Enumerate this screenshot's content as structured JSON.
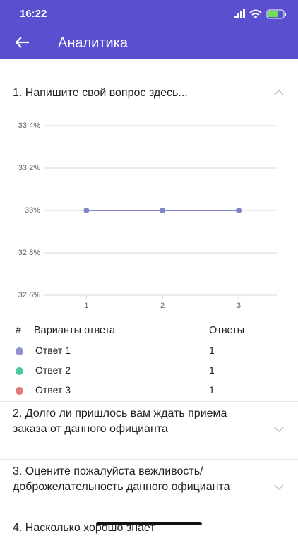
{
  "status": {
    "time": "16:22"
  },
  "header": {
    "title": "Аналитика"
  },
  "questions": [
    {
      "title": "1. Напишите свой вопрос здесь...",
      "chart": {
        "type": "line",
        "x": [
          1,
          2,
          3
        ],
        "values": [
          33,
          33,
          33
        ],
        "color": "#7f86c6",
        "xlim": [
          0.44,
          3.5
        ],
        "xticks": [
          1,
          2,
          3
        ],
        "ylim": [
          32.6,
          33.4
        ],
        "yticks": [
          {
            "value": 32.6,
            "label": "32.6%"
          },
          {
            "value": 32.8,
            "label": "32.8%"
          },
          {
            "value": 33,
            "label": "33%"
          },
          {
            "value": 33.2,
            "label": "33.2%"
          },
          {
            "value": 33.4,
            "label": "33.4%"
          }
        ],
        "grid": true
      },
      "table": {
        "headers": [
          "#",
          "Варианты ответа",
          "Ответы"
        ],
        "rows": [
          {
            "color": "#8f93c8",
            "label": "Ответ 1",
            "count": 1
          },
          {
            "color": "#4fcaa0",
            "label": "Ответ 2",
            "count": 1
          },
          {
            "color": "#e07a78",
            "label": "Ответ 3",
            "count": 1
          }
        ]
      }
    },
    {
      "title": "2. Долго ли пришлось вам ждать приема заказа от данного официанта"
    },
    {
      "title": "3. Оцените пожалуйста вежливость/ доброжелательность данного официанта"
    },
    {
      "title": "4. Насколько хорошо знает"
    }
  ]
}
